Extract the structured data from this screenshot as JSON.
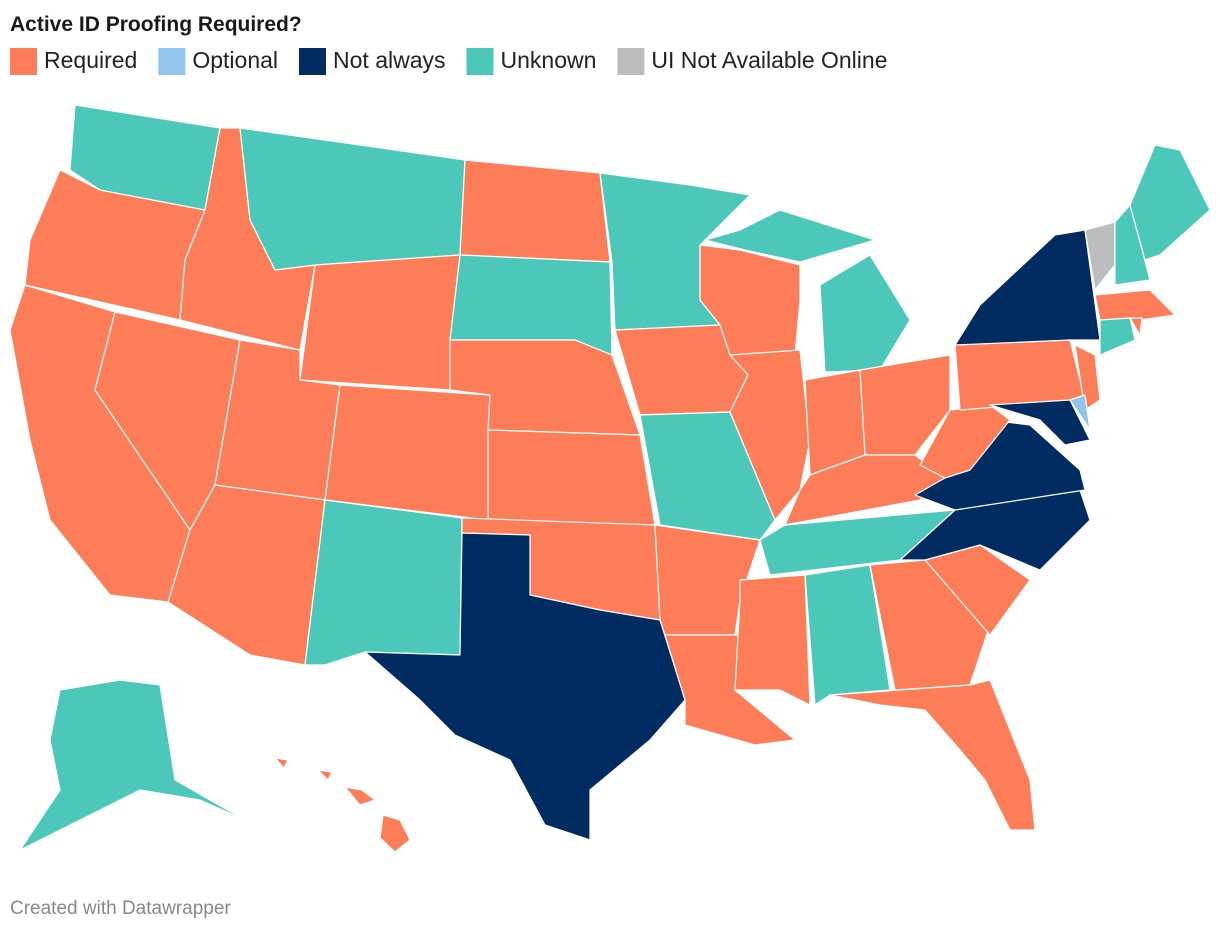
{
  "header": {
    "title": "Active ID Proofing Required?"
  },
  "legend": [
    {
      "label": "Required",
      "color": "#fd7d59"
    },
    {
      "label": "Optional",
      "color": "#91c4ea"
    },
    {
      "label": "Not always",
      "color": "#002c61"
    },
    {
      "label": "Unknown",
      "color": "#4bc8b9"
    },
    {
      "label": "UI Not Available Online",
      "color": "#bdbdbd"
    }
  ],
  "footer": {
    "credit": "Created with Datawrapper"
  }
}
